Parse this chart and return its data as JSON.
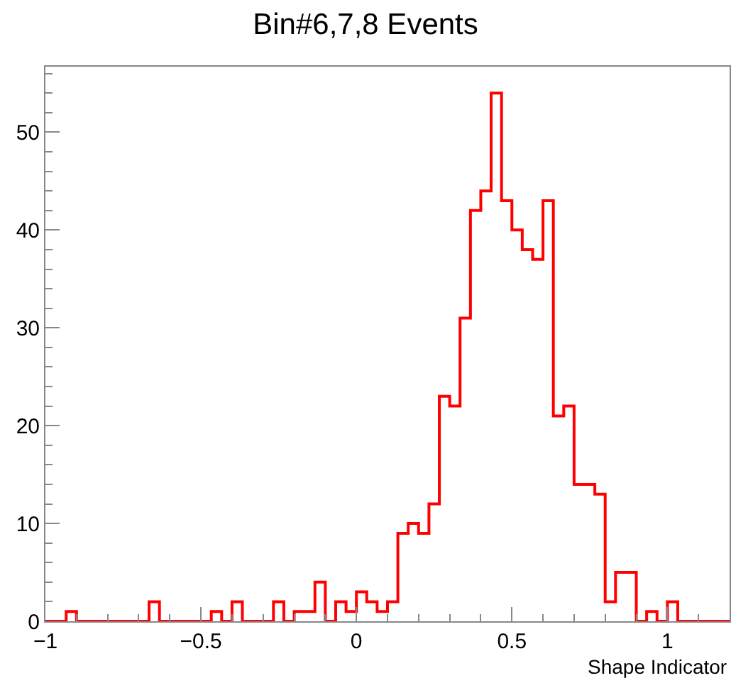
{
  "chart_data": {
    "type": "histogram",
    "title": "Bin#6,7,8 Events",
    "xlabel": "Shape Indicator",
    "bins": [
      -1.0,
      -0.9667,
      -0.9333,
      -0.9,
      -0.8667,
      -0.8333,
      -0.8,
      -0.7667,
      -0.7333,
      -0.7,
      -0.6667,
      -0.6333,
      -0.6,
      -0.5667,
      -0.5333,
      -0.5,
      -0.4667,
      -0.4333,
      -0.4,
      -0.3667,
      -0.3333,
      -0.3,
      -0.2667,
      -0.2333,
      -0.2,
      -0.1667,
      -0.1333,
      -0.1,
      -0.0667,
      -0.0333,
      0.0,
      0.0333,
      0.0667,
      0.1,
      0.1333,
      0.1667,
      0.2,
      0.2333,
      0.2667,
      0.3,
      0.3333,
      0.3667,
      0.4,
      0.4333,
      0.4667,
      0.5,
      0.5333,
      0.5667,
      0.6,
      0.6333,
      0.6667,
      0.7,
      0.7333,
      0.7667,
      0.8,
      0.8333,
      0.8667,
      0.9,
      0.9333,
      0.9667,
      1.0,
      1.0333,
      1.0667,
      1.1,
      1.1333,
      1.1667,
      1.2
    ],
    "values": [
      0,
      0,
      1,
      0,
      0,
      0,
      0,
      0,
      0,
      0,
      2,
      0,
      0,
      0,
      0,
      0,
      1,
      0,
      2,
      0,
      0,
      0,
      2,
      0,
      1,
      1,
      4,
      0,
      2,
      1,
      3,
      2,
      1,
      2,
      9,
      10,
      9,
      12,
      23,
      22,
      31,
      42,
      44,
      54,
      43,
      40,
      38,
      37,
      43,
      21,
      22,
      14,
      14,
      13,
      2,
      5,
      5,
      0,
      1,
      0,
      2,
      0,
      0,
      0,
      0,
      0
    ],
    "color": "#ff0000",
    "line_style": "solid",
    "xlim": [
      -1,
      1.2
    ],
    "xticks": [
      {
        "value": -1,
        "label": "−1"
      },
      {
        "value": -0.5,
        "label": "−0.5"
      },
      0,
      0.5,
      1
    ],
    "ylim": [
      0,
      56.7
    ],
    "yticks": [
      0,
      10,
      20,
      30,
      40,
      50
    ]
  }
}
